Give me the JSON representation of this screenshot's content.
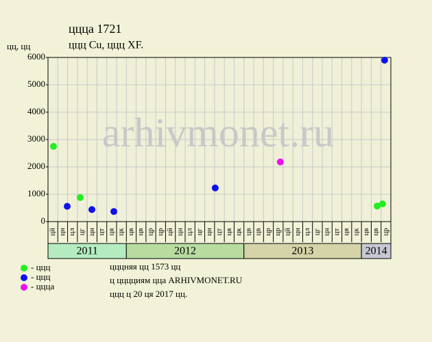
{
  "chart_data": {
    "type": "scatter",
    "title": "ццца 1721",
    "subtitle": "ццц Cu, ццц XF.",
    "y_label": "цц, цц",
    "watermark": "arhivmonet.ru",
    "xlim": [
      0,
      35
    ],
    "ylim": [
      0,
      6000
    ],
    "yticks": [
      0,
      1000,
      2000,
      3000,
      4000,
      5000,
      6000
    ],
    "grid": true,
    "month_labels": [
      "цй",
      "цн",
      "цл",
      "цг",
      "цн",
      "цт",
      "ця",
      "цк",
      "цв",
      "цв",
      "цр",
      "цр",
      "цй",
      "цн",
      "цл",
      "цг",
      "цн",
      "цт",
      "ця",
      "цк",
      "цв",
      "цв",
      "цр",
      "цр",
      "цй",
      "цн",
      "цл",
      "цг",
      "цн",
      "цт",
      "ця",
      "цк",
      "цв",
      "цв",
      "цр"
    ],
    "years": [
      {
        "label": "2011",
        "start": 0,
        "end": 8,
        "color": "#b4ecc0"
      },
      {
        "label": "2012",
        "start": 8,
        "end": 20,
        "color": "#b8dca0"
      },
      {
        "label": "2013",
        "start": 20,
        "end": 32,
        "color": "#d4d4a8"
      },
      {
        "label": "2014",
        "start": 32,
        "end": 35,
        "color": "#c8c8d4"
      }
    ],
    "series": [
      {
        "name": "- ццц",
        "color": "#22ee22",
        "x": [
          0.56,
          3.29,
          33.6,
          34.15
        ],
        "values": [
          2750,
          880,
          570,
          650
        ]
      },
      {
        "name": "- ццц",
        "color": "#1010ee",
        "x": [
          1.96,
          4.48,
          6.72,
          17.07,
          34.36
        ],
        "values": [
          560,
          440,
          370,
          1230,
          5900
        ]
      },
      {
        "name": "- ццца",
        "color": "#ee10ee",
        "x": [
          23.72
        ],
        "values": [
          2180
        ]
      }
    ],
    "notes": [
      "цццняя цц 1573 цц",
      "ц цццциям цца ARHIVMONET.RU",
      "ццц ц 20 ця 2017 цц."
    ]
  }
}
